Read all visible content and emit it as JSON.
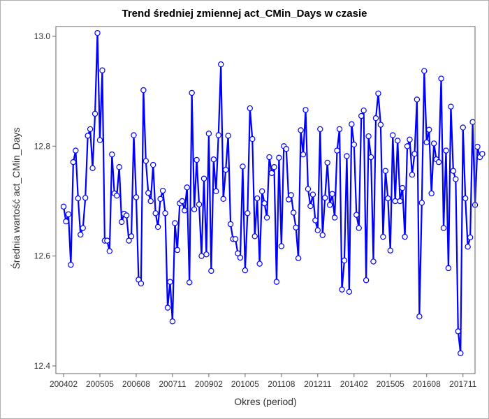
{
  "chart_data": {
    "type": "line",
    "title": "Trend średniej zmiennej act_CMin_Days w czasie",
    "xlabel": "Okres (period)",
    "ylabel": "Średnia wartość act_CMin_Days",
    "ylim": [
      12.4,
      13.0
    ],
    "yticks": [
      "12.4",
      "12.6",
      "12.8",
      "13.0"
    ],
    "xtick_labels": [
      "200402",
      "200505",
      "200608",
      "200711",
      "200902",
      "201005",
      "201108",
      "201211",
      "201402",
      "201505",
      "201608",
      "201711"
    ],
    "xtick_index": [
      0,
      15,
      30,
      45,
      60,
      75,
      90,
      105,
      120,
      135,
      150,
      165
    ],
    "grid": false,
    "legend": "none",
    "colors": {
      "line": "#0000ff",
      "marker_fill": "#ffffff",
      "band": "#bdbdbd",
      "axis": "#666666"
    },
    "series": [
      {
        "values": [
          12.69,
          12.663,
          12.676,
          12.584,
          12.771,
          12.792,
          12.705,
          12.639,
          12.651,
          12.706,
          12.819,
          12.831,
          12.76,
          12.859,
          13.006,
          12.811,
          12.938,
          12.628,
          12.628,
          12.609,
          12.785,
          12.714,
          12.71,
          12.762,
          12.662,
          12.677,
          12.674,
          12.628,
          12.636,
          12.82,
          12.707,
          12.557,
          12.55,
          12.902,
          12.773,
          12.715,
          12.7,
          12.766,
          12.678,
          12.653,
          12.704,
          12.719,
          12.678,
          12.506,
          12.553,
          12.481,
          12.66,
          12.611,
          12.696,
          12.7,
          12.683,
          12.725,
          12.552,
          12.897,
          12.685,
          12.775,
          12.694,
          12.6,
          12.741,
          12.603,
          12.823,
          12.573,
          12.776,
          12.718,
          12.82,
          12.949,
          12.704,
          12.757,
          12.819,
          12.658,
          12.631,
          12.631,
          12.605,
          12.597,
          12.763,
          12.574,
          12.678,
          12.869,
          12.813,
          12.636,
          12.705,
          12.586,
          12.718,
          12.696,
          12.67,
          12.78,
          12.751,
          12.762,
          12.553,
          12.779,
          12.618,
          12.8,
          12.795,
          12.703,
          12.711,
          12.679,
          12.652,
          12.596,
          12.829,
          12.785,
          12.866,
          12.722,
          12.691,
          12.712,
          12.665,
          12.647,
          12.831,
          12.638,
          12.706,
          12.77,
          12.693,
          12.713,
          12.67,
          12.792,
          12.831,
          12.539,
          12.592,
          12.782,
          12.535,
          12.84,
          12.803,
          12.675,
          12.651,
          12.855,
          12.865,
          12.556,
          12.818,
          12.78,
          12.59,
          12.851,
          12.896,
          12.839,
          12.635,
          12.755,
          12.705,
          12.61,
          12.82,
          12.7,
          12.81,
          12.7,
          12.724,
          12.635,
          12.8,
          12.812,
          12.748,
          12.786,
          12.885,
          12.49,
          12.697,
          12.937,
          12.807,
          12.83,
          12.714,
          12.805,
          12.776,
          12.771,
          12.923,
          12.651,
          12.792,
          12.578,
          12.872,
          12.755,
          12.74,
          12.463,
          12.423,
          12.834,
          12.705,
          12.617,
          12.634,
          12.844,
          12.693,
          12.799,
          12.78,
          12.786
        ]
      }
    ]
  }
}
